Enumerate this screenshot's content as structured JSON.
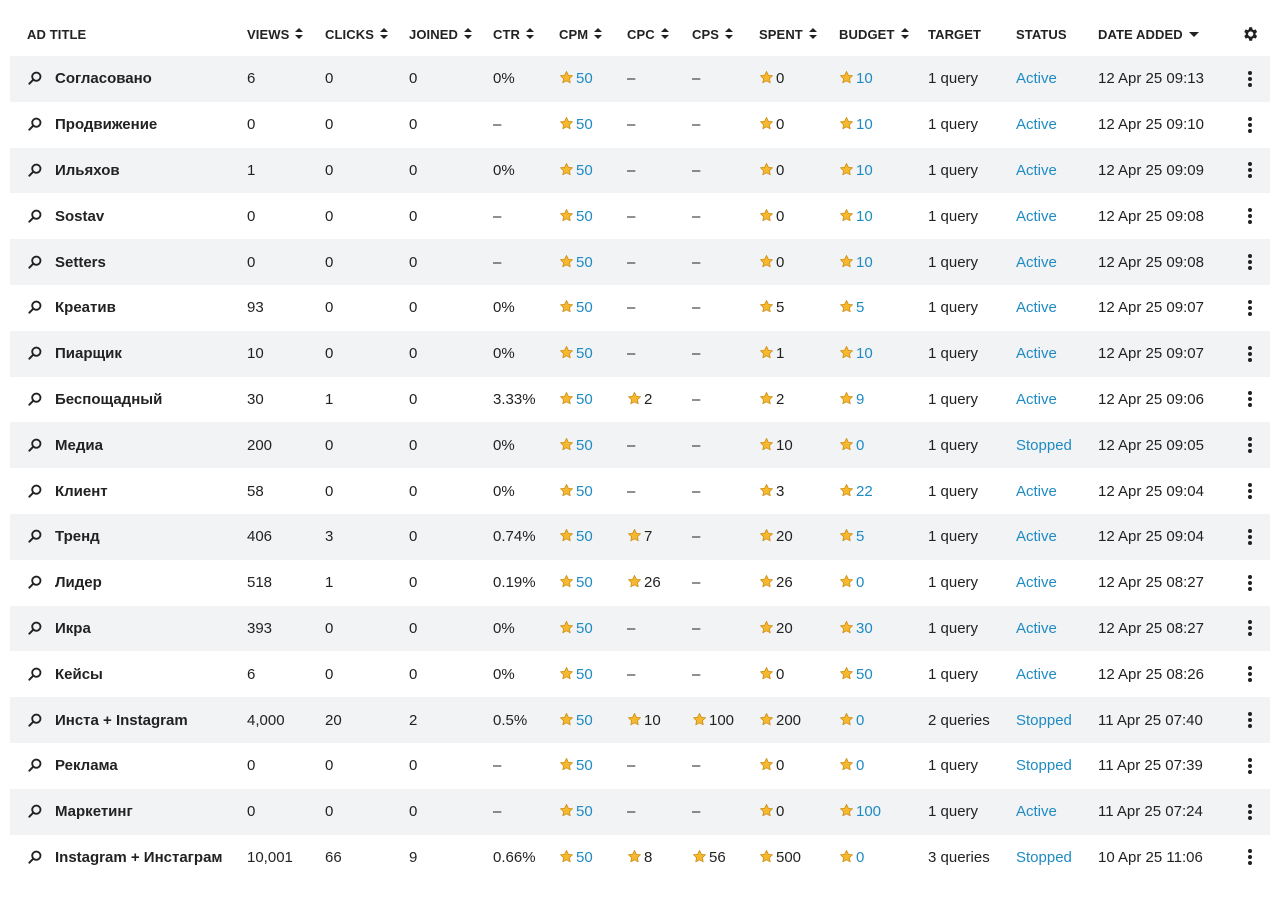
{
  "columns": [
    {
      "key": "title",
      "label": "AD TITLE",
      "sort": "none"
    },
    {
      "key": "views",
      "label": "VIEWS",
      "sort": "both"
    },
    {
      "key": "clicks",
      "label": "CLICKS",
      "sort": "both"
    },
    {
      "key": "joined",
      "label": "JOINED",
      "sort": "both"
    },
    {
      "key": "ctr",
      "label": "CTR",
      "sort": "both"
    },
    {
      "key": "cpm",
      "label": "CPM",
      "sort": "both"
    },
    {
      "key": "cpc",
      "label": "CPC",
      "sort": "both"
    },
    {
      "key": "cps",
      "label": "CPS",
      "sort": "both"
    },
    {
      "key": "spent",
      "label": "SPENT",
      "sort": "both"
    },
    {
      "key": "budget",
      "label": "BUDGET",
      "sort": "both"
    },
    {
      "key": "target",
      "label": "TARGET",
      "sort": "none"
    },
    {
      "key": "status",
      "label": "STATUS",
      "sort": "none"
    },
    {
      "key": "date",
      "label": "DATE ADDED",
      "sort": "desc"
    }
  ],
  "icons": {
    "row": "search-icon",
    "currency": "star-icon",
    "settings": "gear-icon",
    "menu": "kebab-menu-icon"
  },
  "colors": {
    "link": "#1e8bc3",
    "star": "#f5b82e",
    "stripe": "#f2f3f5"
  },
  "rows": [
    {
      "title": "Согласовано",
      "views": "6",
      "clicks": "0",
      "joined": "0",
      "ctr": "0%",
      "cpm": "50",
      "cpc": "–",
      "cps": "–",
      "spent": "0",
      "budget": "10",
      "target": "1 query",
      "status": "Active",
      "date": "12 Apr 25 09:13"
    },
    {
      "title": "Продвижение",
      "views": "0",
      "clicks": "0",
      "joined": "0",
      "ctr": "–",
      "cpm": "50",
      "cpc": "–",
      "cps": "–",
      "spent": "0",
      "budget": "10",
      "target": "1 query",
      "status": "Active",
      "date": "12 Apr 25 09:10"
    },
    {
      "title": "Ильяхов",
      "views": "1",
      "clicks": "0",
      "joined": "0",
      "ctr": "0%",
      "cpm": "50",
      "cpc": "–",
      "cps": "–",
      "spent": "0",
      "budget": "10",
      "target": "1 query",
      "status": "Active",
      "date": "12 Apr 25 09:09"
    },
    {
      "title": "Sostav",
      "views": "0",
      "clicks": "0",
      "joined": "0",
      "ctr": "–",
      "cpm": "50",
      "cpc": "–",
      "cps": "–",
      "spent": "0",
      "budget": "10",
      "target": "1 query",
      "status": "Active",
      "date": "12 Apr 25 09:08"
    },
    {
      "title": "Setters",
      "views": "0",
      "clicks": "0",
      "joined": "0",
      "ctr": "–",
      "cpm": "50",
      "cpc": "–",
      "cps": "–",
      "spent": "0",
      "budget": "10",
      "target": "1 query",
      "status": "Active",
      "date": "12 Apr 25 09:08"
    },
    {
      "title": "Креатив",
      "views": "93",
      "clicks": "0",
      "joined": "0",
      "ctr": "0%",
      "cpm": "50",
      "cpc": "–",
      "cps": "–",
      "spent": "5",
      "budget": "5",
      "target": "1 query",
      "status": "Active",
      "date": "12 Apr 25 09:07"
    },
    {
      "title": "Пиарщик",
      "views": "10",
      "clicks": "0",
      "joined": "0",
      "ctr": "0%",
      "cpm": "50",
      "cpc": "–",
      "cps": "–",
      "spent": "1",
      "budget": "10",
      "target": "1 query",
      "status": "Active",
      "date": "12 Apr 25 09:07"
    },
    {
      "title": "Беспощадный",
      "views": "30",
      "clicks": "1",
      "joined": "0",
      "ctr": "3.33%",
      "cpm": "50",
      "cpc": "2",
      "cps": "–",
      "spent": "2",
      "budget": "9",
      "target": "1 query",
      "status": "Active",
      "date": "12 Apr 25 09:06"
    },
    {
      "title": "Медиа",
      "views": "200",
      "clicks": "0",
      "joined": "0",
      "ctr": "0%",
      "cpm": "50",
      "cpc": "–",
      "cps": "–",
      "spent": "10",
      "budget": "0",
      "target": "1 query",
      "status": "Stopped",
      "date": "12 Apr 25 09:05"
    },
    {
      "title": "Клиент",
      "views": "58",
      "clicks": "0",
      "joined": "0",
      "ctr": "0%",
      "cpm": "50",
      "cpc": "–",
      "cps": "–",
      "spent": "3",
      "budget": "22",
      "target": "1 query",
      "status": "Active",
      "date": "12 Apr 25 09:04"
    },
    {
      "title": "Тренд",
      "views": "406",
      "clicks": "3",
      "joined": "0",
      "ctr": "0.74%",
      "cpm": "50",
      "cpc": "7",
      "cps": "–",
      "spent": "20",
      "budget": "5",
      "target": "1 query",
      "status": "Active",
      "date": "12 Apr 25 09:04"
    },
    {
      "title": "Лидер",
      "views": "518",
      "clicks": "1",
      "joined": "0",
      "ctr": "0.19%",
      "cpm": "50",
      "cpc": "26",
      "cps": "–",
      "spent": "26",
      "budget": "0",
      "target": "1 query",
      "status": "Active",
      "date": "12 Apr 25 08:27"
    },
    {
      "title": "Икра",
      "views": "393",
      "clicks": "0",
      "joined": "0",
      "ctr": "0%",
      "cpm": "50",
      "cpc": "–",
      "cps": "–",
      "spent": "20",
      "budget": "30",
      "target": "1 query",
      "status": "Active",
      "date": "12 Apr 25 08:27"
    },
    {
      "title": "Кейсы",
      "views": "6",
      "clicks": "0",
      "joined": "0",
      "ctr": "0%",
      "cpm": "50",
      "cpc": "–",
      "cps": "–",
      "spent": "0",
      "budget": "50",
      "target": "1 query",
      "status": "Active",
      "date": "12 Apr 25 08:26"
    },
    {
      "title": "Инста + Instagram",
      "views": "4,000",
      "clicks": "20",
      "joined": "2",
      "ctr": "0.5%",
      "cpm": "50",
      "cpc": "10",
      "cps": "100",
      "spent": "200",
      "budget": "0",
      "target": "2 queries",
      "status": "Stopped",
      "date": "11 Apr 25 07:40"
    },
    {
      "title": "Реклама",
      "views": "0",
      "clicks": "0",
      "joined": "0",
      "ctr": "–",
      "cpm": "50",
      "cpc": "–",
      "cps": "–",
      "spent": "0",
      "budget": "0",
      "target": "1 query",
      "status": "Stopped",
      "date": "11 Apr 25 07:39"
    },
    {
      "title": "Маркетинг",
      "views": "0",
      "clicks": "0",
      "joined": "0",
      "ctr": "–",
      "cpm": "50",
      "cpc": "–",
      "cps": "–",
      "spent": "0",
      "budget": "100",
      "target": "1 query",
      "status": "Active",
      "date": "11 Apr 25 07:24"
    },
    {
      "title": "Instagram + Инстаграм",
      "views": "10,001",
      "clicks": "66",
      "joined": "9",
      "ctr": "0.66%",
      "cpm": "50",
      "cpc": "8",
      "cps": "56",
      "spent": "500",
      "budget": "0",
      "target": "3 queries",
      "status": "Stopped",
      "date": "10 Apr 25 11:06"
    }
  ]
}
